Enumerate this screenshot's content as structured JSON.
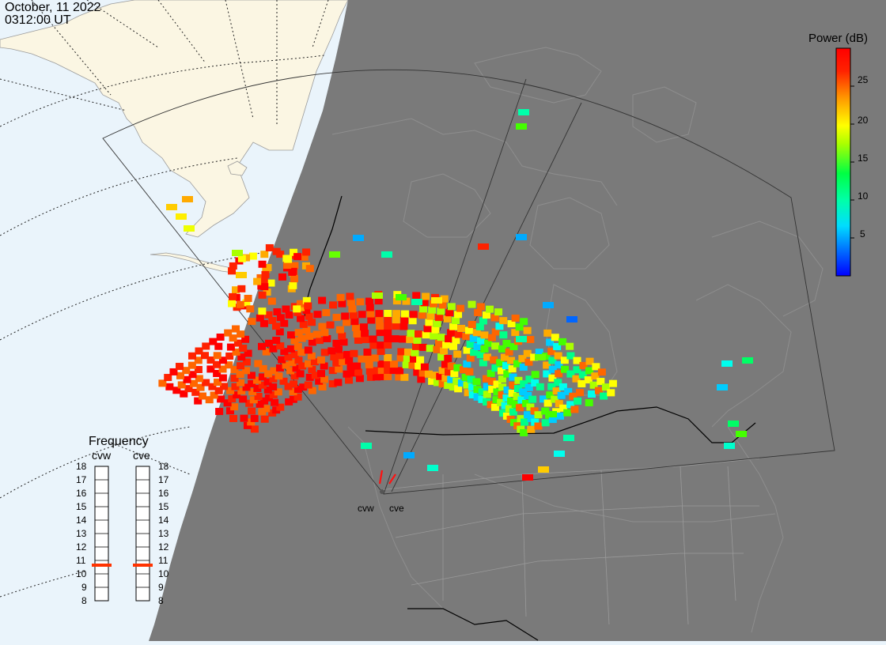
{
  "timestamp": {
    "date": "October, 11 2022",
    "time": "0312:00 UT"
  },
  "colorbar": {
    "title": "Power (dB)",
    "min": 0,
    "max": 30,
    "ticks": [
      "25",
      "20",
      "15",
      "10",
      "5"
    ],
    "tick_values": [
      25,
      20,
      15,
      10,
      5
    ],
    "colors": [
      "#0000ff",
      "#00aaff",
      "#00ffee",
      "#00ff66",
      "#88ff00",
      "#ffff00",
      "#ffaa00",
      "#ff4400",
      "#ff0000"
    ]
  },
  "frequency_panel": {
    "title": "Frequency",
    "columns": [
      {
        "name": "cvw",
        "current_mhz": 11
      },
      {
        "name": "cve",
        "current_mhz": 11
      }
    ],
    "scale": [
      "18",
      "17",
      "16",
      "15",
      "14",
      "13",
      "12",
      "11",
      "10",
      "9",
      "8"
    ],
    "marker_color": "#ff3300"
  },
  "radars": [
    {
      "label": "cvw"
    },
    {
      "label": "cve"
    }
  ],
  "map_colors": {
    "ocean_day": "#eaf4fb",
    "land_day": "#fbf6e3",
    "night": "#7a7a7a",
    "outline": "#999999",
    "border": "#000000"
  }
}
